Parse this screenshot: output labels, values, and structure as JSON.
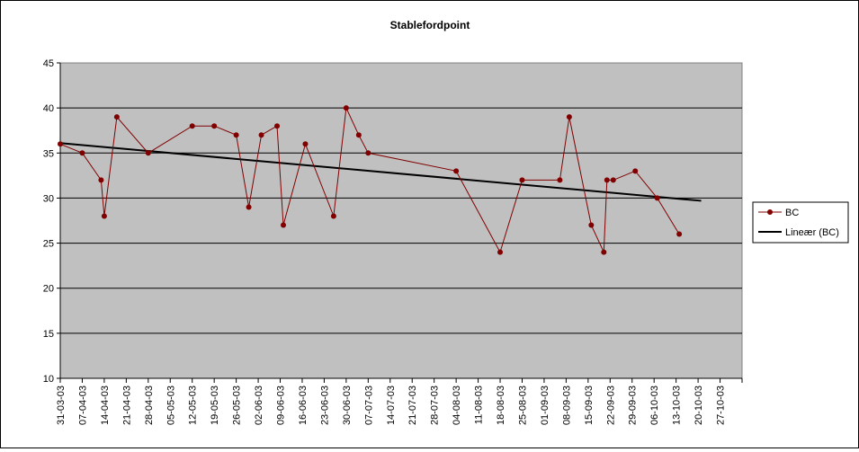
{
  "chart_data": {
    "type": "line",
    "title": "Stablefordpoint",
    "ylim": [
      10,
      45
    ],
    "yticks": [
      10,
      15,
      20,
      25,
      30,
      35,
      40,
      45
    ],
    "y_gridlines": true,
    "plot_background": "#C0C0C0",
    "legend_position": "right",
    "x_tick_labels": [
      "31-03-03",
      "07-04-03",
      "14-04-03",
      "21-04-03",
      "28-04-03",
      "05-05-03",
      "12-05-03",
      "19-05-03",
      "26-05-03",
      "02-06-03",
      "09-06-03",
      "16-06-03",
      "23-06-03",
      "30-06-03",
      "07-07-03",
      "14-07-03",
      "21-07-03",
      "28-07-03",
      "04-08-03",
      "11-08-03",
      "18-08-03",
      "25-08-03",
      "01-09-03",
      "08-09-03",
      "15-09-03",
      "22-09-03",
      "29-09-03",
      "06-10-03",
      "13-10-03",
      "20-10-03",
      "27-10-03"
    ],
    "series": [
      {
        "name": "BC",
        "color": "#800000",
        "marker": "circle",
        "points": [
          {
            "x": "2003-03-31",
            "y": 36
          },
          {
            "x": "2003-04-07",
            "y": 35
          },
          {
            "x": "2003-04-13",
            "y": 32
          },
          {
            "x": "2003-04-14",
            "y": 28
          },
          {
            "x": "2003-04-18",
            "y": 39
          },
          {
            "x": "2003-04-28",
            "y": 35
          },
          {
            "x": "2003-05-12",
            "y": 38
          },
          {
            "x": "2003-05-19",
            "y": 38
          },
          {
            "x": "2003-05-26",
            "y": 37
          },
          {
            "x": "2003-05-30",
            "y": 29
          },
          {
            "x": "2003-06-03",
            "y": 37
          },
          {
            "x": "2003-06-08",
            "y": 38
          },
          {
            "x": "2003-06-10",
            "y": 27
          },
          {
            "x": "2003-06-17",
            "y": 36
          },
          {
            "x": "2003-06-26",
            "y": 28
          },
          {
            "x": "2003-06-30",
            "y": 40
          },
          {
            "x": "2003-07-04",
            "y": 37
          },
          {
            "x": "2003-07-07",
            "y": 35
          },
          {
            "x": "2003-08-04",
            "y": 33
          },
          {
            "x": "2003-08-18",
            "y": 24
          },
          {
            "x": "2003-08-25",
            "y": 32
          },
          {
            "x": "2003-09-06",
            "y": 32
          },
          {
            "x": "2003-09-09",
            "y": 39
          },
          {
            "x": "2003-09-16",
            "y": 27
          },
          {
            "x": "2003-09-20",
            "y": 24
          },
          {
            "x": "2003-09-21",
            "y": 32
          },
          {
            "x": "2003-09-23",
            "y": 32
          },
          {
            "x": "2003-09-30",
            "y": 33
          },
          {
            "x": "2003-10-07",
            "y": 30
          },
          {
            "x": "2003-10-14",
            "y": 26
          }
        ]
      },
      {
        "name": "Lineær (BC)",
        "color": "#000000",
        "type": "trendline-linear",
        "points": [
          {
            "x": "2003-03-31",
            "y": 36.1
          },
          {
            "x": "2003-10-21",
            "y": 29.7
          }
        ]
      }
    ]
  }
}
